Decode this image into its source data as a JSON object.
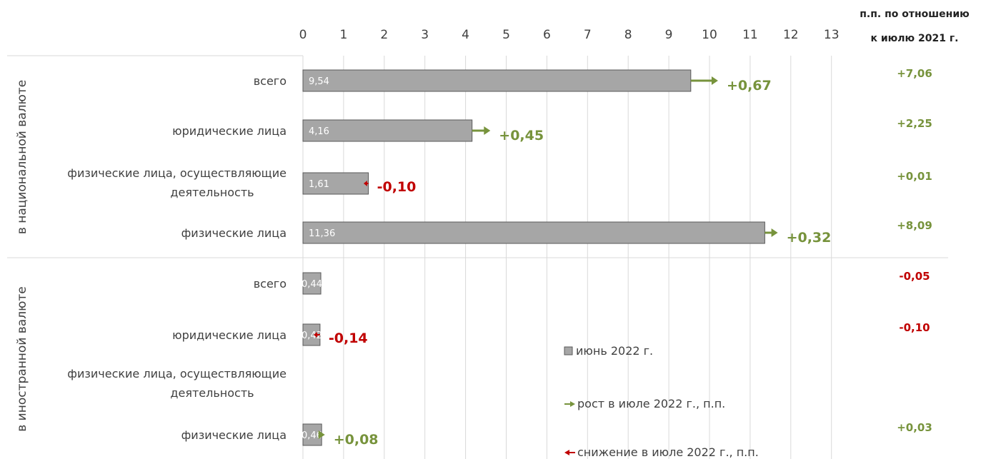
{
  "chart_data": {
    "type": "bar",
    "orientation": "horizontal",
    "xlim": [
      0,
      13
    ],
    "xticks": [
      "0",
      "1",
      "2",
      "3",
      "4",
      "5",
      "6",
      "7",
      "8",
      "9",
      "10",
      "11",
      "12",
      "13"
    ],
    "grid": "vertical",
    "yoy_header": [
      "п.п. по отношению",
      "к июлю 2021 г."
    ],
    "groups": [
      {
        "label": "в национальной валюте",
        "rows": [
          {
            "label": [
              "всего"
            ],
            "value": 9.54,
            "value_label": "9,54",
            "change": 0.67,
            "change_label": "+0,67",
            "yoy": "+7,06"
          },
          {
            "label": [
              "юридические лица"
            ],
            "value": 4.16,
            "value_label": "4,16",
            "change": 0.45,
            "change_label": "+0,45",
            "yoy": "+2,25"
          },
          {
            "label": [
              "физические лица, осуществляющие",
              "деятельность"
            ],
            "value": 1.61,
            "value_label": "1,61",
            "change": -0.1,
            "change_label": "-0,10",
            "yoy": "+0,01"
          },
          {
            "label": [
              "физические лица"
            ],
            "value": 11.36,
            "value_label": "11,36",
            "change": 0.32,
            "change_label": "+0,32",
            "yoy": "+8,09"
          }
        ]
      },
      {
        "label": "в иностранной валюте",
        "rows": [
          {
            "label": [
              "всего"
            ],
            "value": 0.44,
            "value_label": "0,44",
            "change": null,
            "change_label": "",
            "yoy": "-0,05"
          },
          {
            "label": [
              "юридические лица"
            ],
            "value": 0.42,
            "value_label": "0,42",
            "change": -0.14,
            "change_label": "-0,14",
            "yoy": "-0,10"
          },
          {
            "label": [
              "физические лица, осуществляющие",
              "деятельность"
            ],
            "value": null,
            "value_label": "",
            "change": null,
            "change_label": "",
            "yoy": ""
          },
          {
            "label": [
              "физические лица"
            ],
            "value": 0.46,
            "value_label": "0,46",
            "change": 0.08,
            "change_label": "+0,08",
            "yoy": "+0,03"
          }
        ]
      }
    ],
    "legend": [
      {
        "label": "июнь 2022 г.",
        "marker": "square"
      },
      {
        "label": "рост в июле 2022 г., п.п.",
        "marker": "arrow-right"
      },
      {
        "label": "снижение в июле 2022 г., п.п.",
        "marker": "arrow-left"
      }
    ],
    "legend_position": "inside-bottom-right",
    "colors": {
      "bar": "#a6a6a6",
      "bar_border": "#595959",
      "increase": "#77933c",
      "decrease": "#c00000",
      "grid": "#d9d9d9",
      "text": "#404040"
    }
  }
}
